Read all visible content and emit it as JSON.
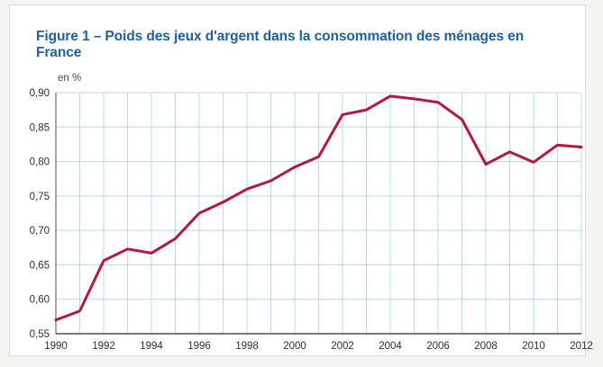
{
  "figure": {
    "title": "Figure 1 – Poids des jeux d'argent dans la consommation des ménages en France",
    "title_color": "#2060a0"
  },
  "chart_data": {
    "type": "line",
    "title": "Figure 1 – Poids des jeux d'argent dans la consommation des ménages en France",
    "xlabel": "",
    "ylabel": "en %",
    "x": [
      1990,
      1991,
      1992,
      1993,
      1994,
      1995,
      1996,
      1997,
      1998,
      1999,
      2000,
      2001,
      2002,
      2003,
      2004,
      2005,
      2006,
      2007,
      2008,
      2009,
      2010,
      2011,
      2012
    ],
    "series": [
      {
        "name": "Poids des jeux d'argent dans la consommation des ménages",
        "values": [
          0.57,
          0.583,
          0.656,
          0.673,
          0.667,
          0.688,
          0.725,
          0.741,
          0.76,
          0.772,
          0.792,
          0.807,
          0.868,
          0.875,
          0.895,
          0.891,
          0.886,
          0.861,
          0.796,
          0.814,
          0.799,
          0.824,
          0.821
        ]
      }
    ],
    "ylim": [
      0.55,
      0.9
    ],
    "xlim": [
      1990,
      2012
    ],
    "y_ticks": [
      {
        "value": 0.9,
        "label": "0,90"
      },
      {
        "value": 0.85,
        "label": "0,85"
      },
      {
        "value": 0.8,
        "label": "0,80"
      },
      {
        "value": 0.75,
        "label": "0,75"
      },
      {
        "value": 0.7,
        "label": "0,70"
      },
      {
        "value": 0.65,
        "label": "0,65"
      },
      {
        "value": 0.6,
        "label": "0,60"
      },
      {
        "value": 0.55,
        "label": "0,55"
      }
    ],
    "x_ticks": [
      {
        "value": 1990,
        "label": "1990"
      },
      {
        "value": 1992,
        "label": "1992"
      },
      {
        "value": 1994,
        "label": "1994"
      },
      {
        "value": 1996,
        "label": "1996"
      },
      {
        "value": 1998,
        "label": "1998"
      },
      {
        "value": 2000,
        "label": "2000"
      },
      {
        "value": 2002,
        "label": "2002"
      },
      {
        "value": 2004,
        "label": "2004"
      },
      {
        "value": 2006,
        "label": "2006"
      },
      {
        "value": 2008,
        "label": "2008"
      },
      {
        "value": 2010,
        "label": "2010"
      },
      {
        "value": 2012,
        "label": "2012"
      }
    ],
    "grid": true,
    "legend": false,
    "colors": {
      "line": "#b2193e",
      "grid": "#b9d7e9",
      "y_axis": "#8a8a8a",
      "x_axis": "#4d4d4d",
      "tick_text": "#2e2e2e"
    }
  }
}
